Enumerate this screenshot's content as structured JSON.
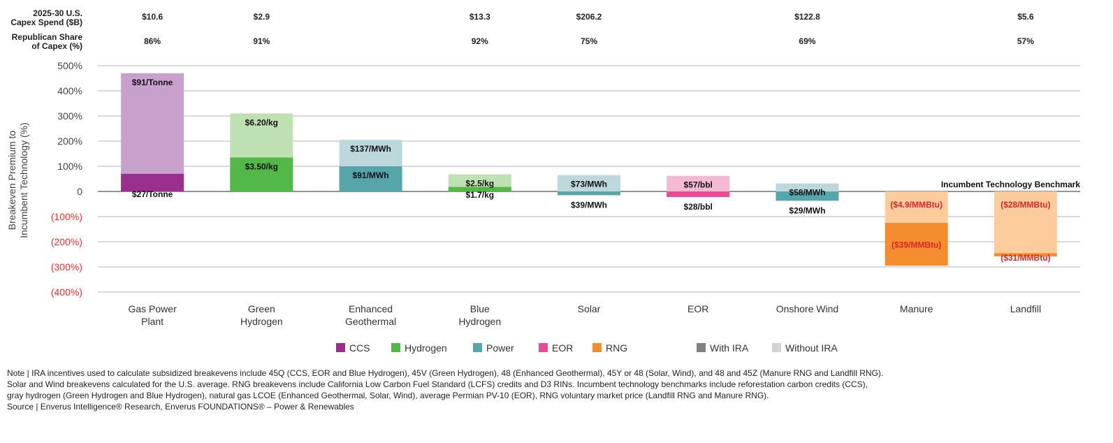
{
  "header": {
    "capex_label_line1": "2025-30 U.S.",
    "capex_label_line2": "Capex Spend ($B)",
    "share_label_line1": "Republican Share",
    "share_label_line2": "of Capex (%)"
  },
  "chart_data": {
    "type": "bar",
    "title": "",
    "xlabel": "",
    "ylabel": [
      "Breakeven Premium to",
      "Incumbent Technology (%)"
    ],
    "ylim": [
      -400,
      500
    ],
    "y_ticks": [
      {
        "value": 500,
        "label": "500%"
      },
      {
        "value": 400,
        "label": "400%"
      },
      {
        "value": 300,
        "label": "300%"
      },
      {
        "value": 200,
        "label": "200%"
      },
      {
        "value": 100,
        "label": "100%"
      },
      {
        "value": 0,
        "label": "0"
      },
      {
        "value": -100,
        "label": "(100%)"
      },
      {
        "value": -200,
        "label": "(200%)"
      },
      {
        "value": -300,
        "label": "(300%)"
      },
      {
        "value": -400,
        "label": "(400%)"
      }
    ],
    "grid": true,
    "benchmark_label": "Incumbent Technology Benchmark",
    "categories": [
      {
        "name": [
          "Gas Power",
          "Plant"
        ],
        "group": "CCS",
        "capex": "$10.6",
        "share": "86%",
        "without_ira": 470,
        "with_ira": 70,
        "without_label": "$91/Tonne",
        "with_label": "$27/Tonne"
      },
      {
        "name": [
          "Green",
          "Hydrogen"
        ],
        "group": "Hydrogen",
        "capex": "$2.9",
        "share": "91%",
        "without_ira": 310,
        "with_ira": 135,
        "without_label": "$6.20/kg",
        "with_label": "$3.50/kg"
      },
      {
        "name": [
          "Enhanced",
          "Geothermal"
        ],
        "group": "Power",
        "capex": "",
        "share": "",
        "without_ira": 205,
        "with_ira": 100,
        "without_label": "$137/MWh",
        "with_label": "$91/MWh"
      },
      {
        "name": [
          "Blue",
          "Hydrogen"
        ],
        "group": "Hydrogen",
        "capex": "$13.3",
        "share": "92%",
        "without_ira": 68,
        "with_ira": 18,
        "without_label": "$2.5/kg",
        "with_label": "$1.7/kg"
      },
      {
        "name": [
          "Solar"
        ],
        "group": "Power",
        "capex": "$206.2",
        "share": "75%",
        "without_ira": 65,
        "with_ira": -15,
        "without_label": "$73/MWh",
        "with_label": "$39/MWh"
      },
      {
        "name": [
          "EOR"
        ],
        "group": "EOR",
        "capex": "",
        "share": "",
        "without_ira": 62,
        "with_ira": -22,
        "without_label": "$57/bbl",
        "with_label": "$28/bbl"
      },
      {
        "name": [
          "Onshore Wind"
        ],
        "group": "Power",
        "capex": "$122.8",
        "share": "69%",
        "without_ira": 32,
        "with_ira": -37,
        "without_label": "$58/MWh",
        "with_label": "$29/MWh"
      },
      {
        "name": [
          "Manure"
        ],
        "group": "RNG",
        "capex": "",
        "share": "",
        "without_ira": -125,
        "with_ira": -295,
        "without_label": "($4.9/MMBtu)",
        "with_label": "($39/MMBtu)"
      },
      {
        "name": [
          "Landfill"
        ],
        "group": "RNG",
        "capex": "$5.6",
        "share": "57%",
        "without_ira": -245,
        "with_ira": -258,
        "without_label": "($28/MMBtu)",
        "with_label": "($31/MMBtu)"
      }
    ],
    "groups": {
      "CCS": {
        "dark": "#9a2f8e",
        "light": "#c8a0cc"
      },
      "Hydrogen": {
        "dark": "#52b848",
        "light": "#bfe0b2"
      },
      "Power": {
        "dark": "#55a5ab",
        "light": "#bcd8dc"
      },
      "EOR": {
        "dark": "#e84b93",
        "light": "#f6b9d4"
      },
      "RNG": {
        "dark": "#f38d30",
        "light": "#fdcc9c"
      }
    },
    "legend": {
      "position": "bottom",
      "items": [
        {
          "label": "CCS",
          "color": "#9a2f8e"
        },
        {
          "label": "Hydrogen",
          "color": "#52b848"
        },
        {
          "label": "Power",
          "color": "#55a5ab"
        },
        {
          "label": "EOR",
          "color": "#e84b93"
        },
        {
          "label": "RNG",
          "color": "#f38d30"
        },
        {
          "label": "With IRA",
          "color": "#808080"
        },
        {
          "label": "Without IRA",
          "color": "#d3d3d3"
        }
      ]
    }
  },
  "notes": {
    "line1": "Note | IRA incentives used to calculate subsidized breakevens include 45Q (CCS, EOR and Blue Hydrogen), 45V (Green Hydrogen), 48 (Enhanced Geothermal), 45Y or 48 (Solar, Wind), and 48 and 45Z (Manure RNG and Landfill RNG).",
    "line2": "Solar and Wind breakevens calculated for the U.S. average. RNG breakevens include California Low Carbon Fuel Standard (LCFS) credits and D3 RINs. Incumbent technology benchmarks include reforestation carbon credits (CCS),",
    "line3": "gray hydrogen (Green Hydrogen and Blue Hydrogen), natural gas LCOE (Enhanced Geothermal, Solar, Wind), average Permian PV-10 (EOR), RNG voluntary market price (Landfill RNG and Manure RNG).",
    "line4": "Source | Enverus Intelligence® Research, Enverus FOUNDATIONS® – Power & Renewables"
  },
  "colors": {
    "negative_tick": "#e8302a",
    "negative_value_label": "#d9262a",
    "grid": "#9a9a9a"
  }
}
